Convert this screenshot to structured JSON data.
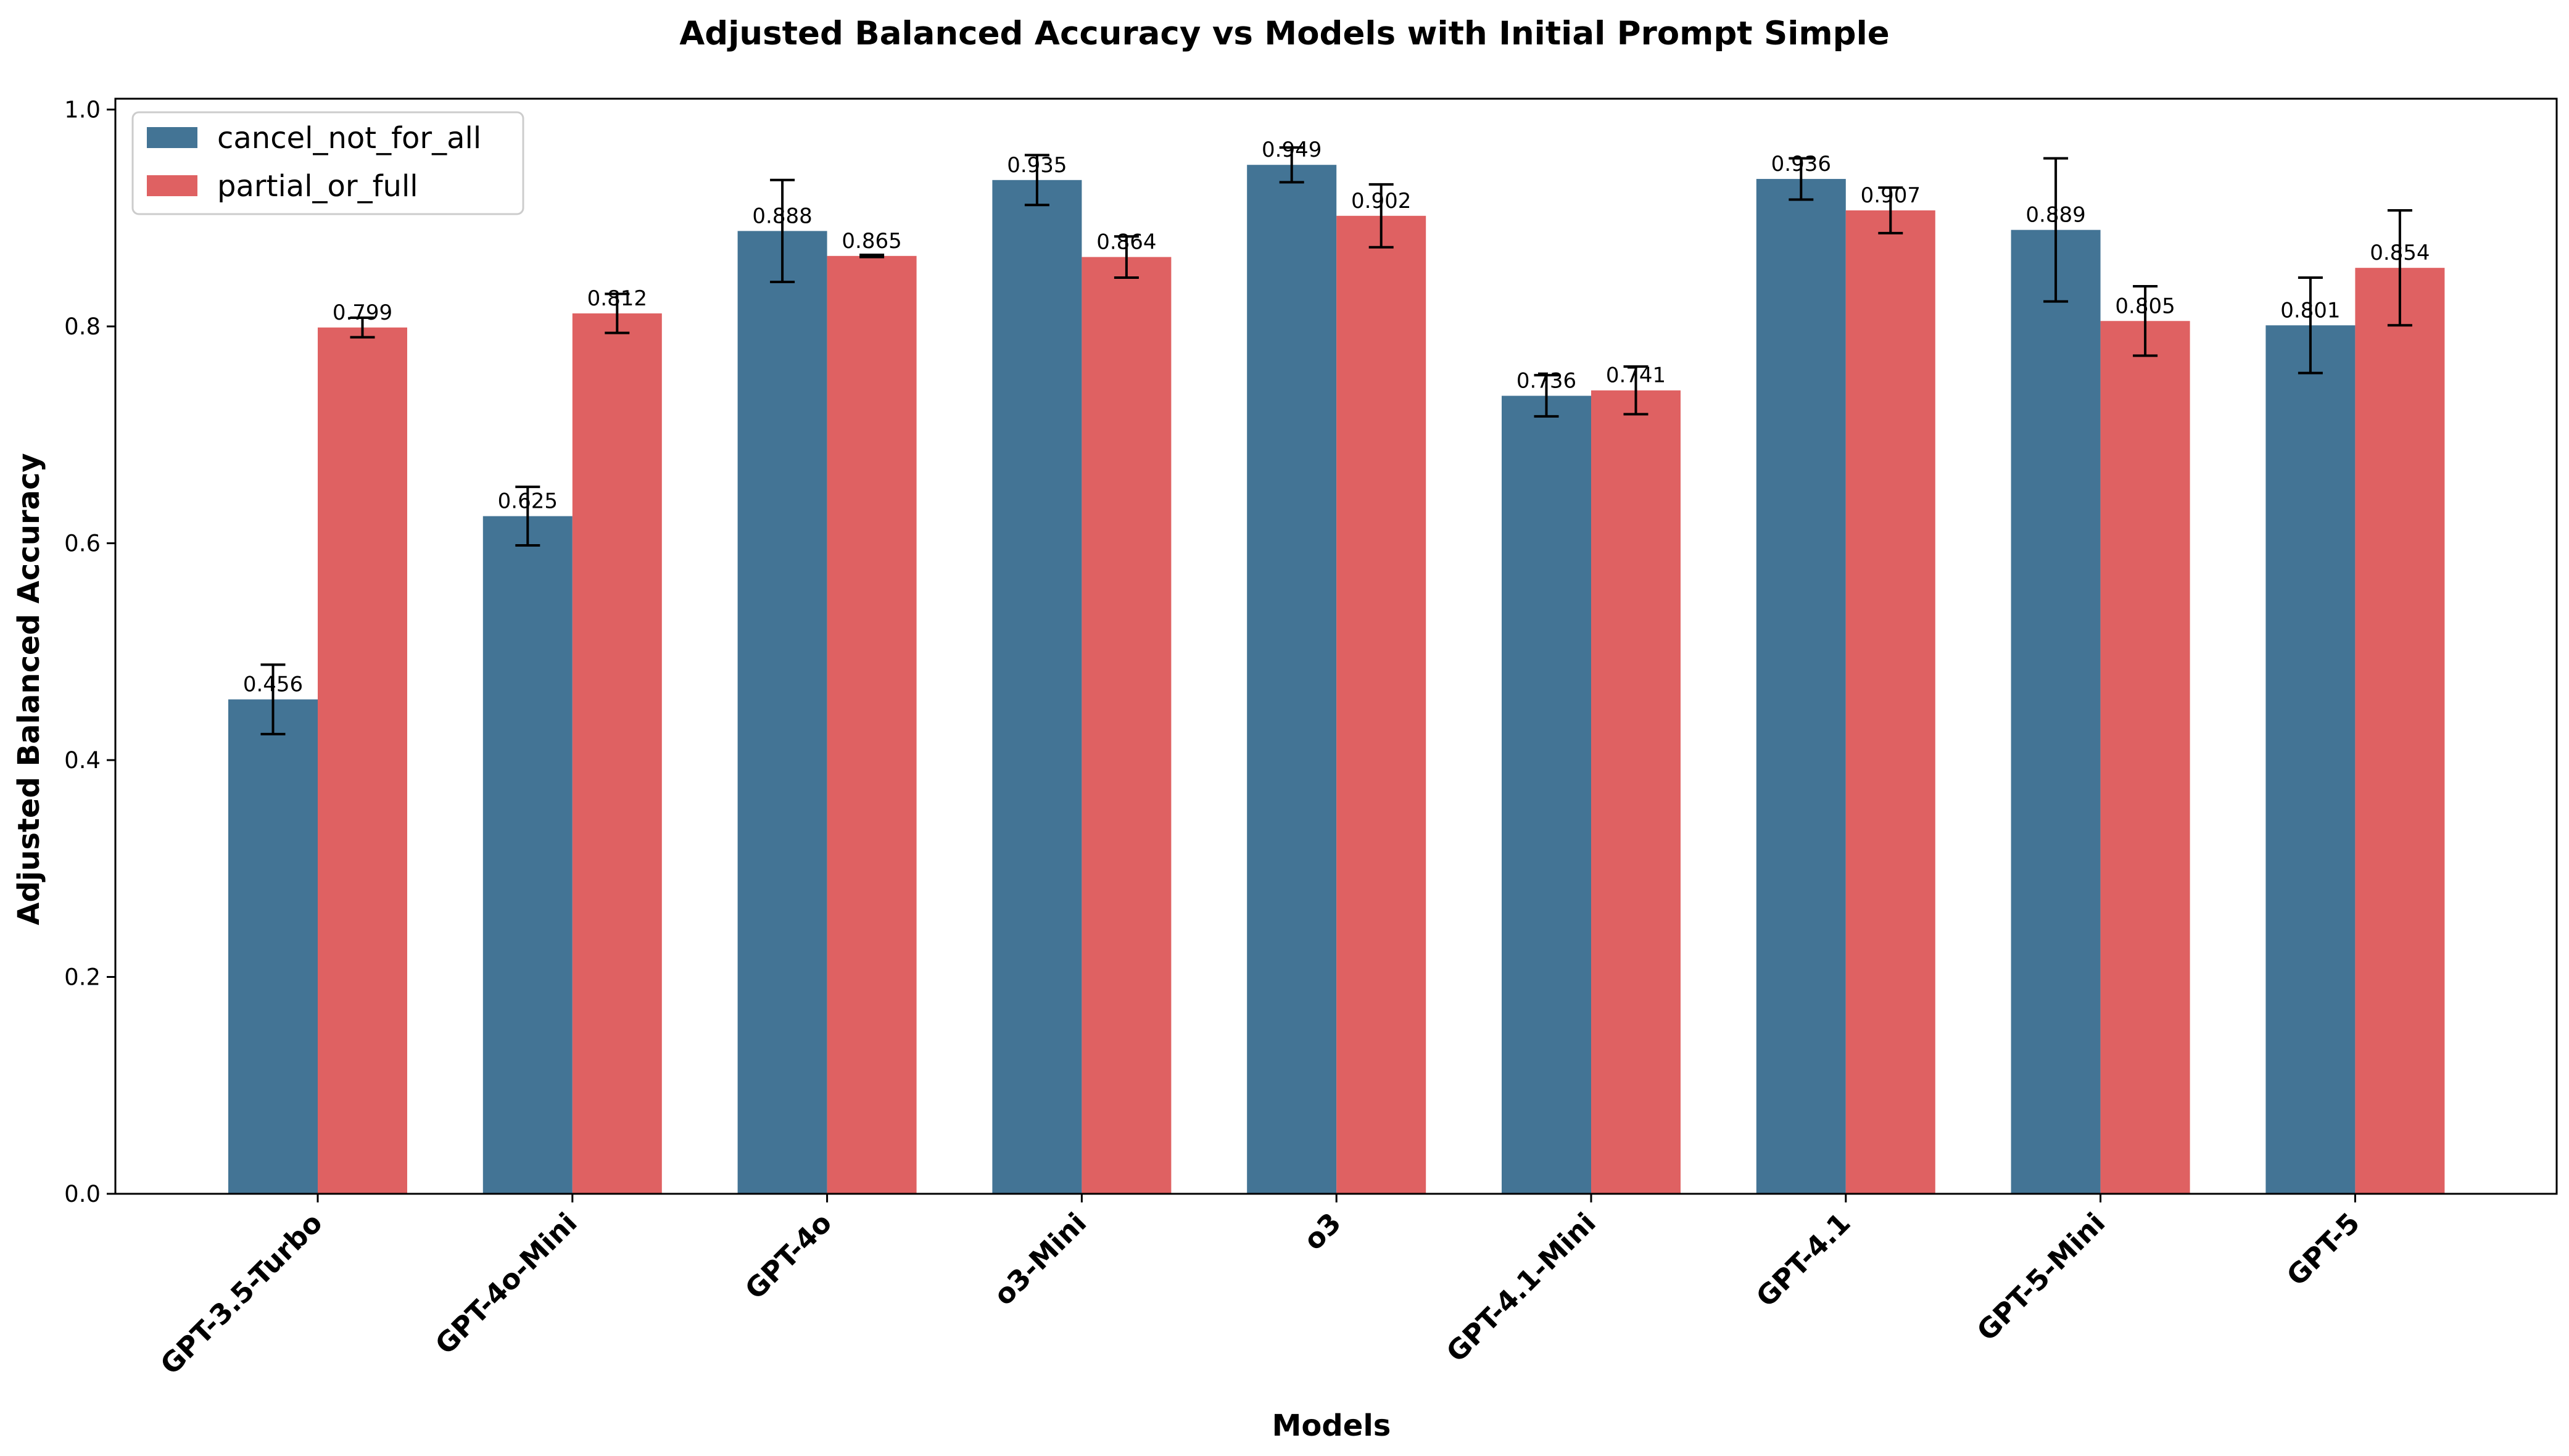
{
  "chart_data": {
    "type": "bar",
    "title": "Adjusted Balanced Accuracy vs Models with Initial Prompt Simple",
    "xlabel": "Models",
    "ylabel": "Adjusted Balanced Accuracy",
    "ylim": [
      0,
      1.01
    ],
    "yticks": [
      0.0,
      0.2,
      0.4,
      0.6,
      0.8,
      1.0
    ],
    "ytick_labels": [
      "0.0",
      "0.2",
      "0.4",
      "0.6",
      "0.8",
      "1.0"
    ],
    "categories": [
      "GPT-3.5-Turbo",
      "GPT-4o-Mini",
      "GPT-4o",
      "o3-Mini",
      "o3",
      "GPT-4.1-Mini",
      "GPT-4.1",
      "GPT-5-Mini",
      "GPT-5"
    ],
    "series": [
      {
        "name": "cancel_not_for_all",
        "color": "#437495",
        "values": [
          0.456,
          0.625,
          0.888,
          0.935,
          0.949,
          0.736,
          0.936,
          0.889,
          0.801
        ],
        "labels": [
          "0.456",
          "0.625",
          "0.888",
          "0.935",
          "0.949",
          "0.736",
          "0.936",
          "0.889",
          "0.801"
        ],
        "errors": [
          0.032,
          0.027,
          0.047,
          0.023,
          0.016,
          0.019,
          0.019,
          0.066,
          0.044
        ]
      },
      {
        "name": "partial_or_full",
        "color": "#DF6162",
        "values": [
          0.799,
          0.812,
          0.865,
          0.864,
          0.902,
          0.741,
          0.907,
          0.805,
          0.854
        ],
        "labels": [
          "0.799",
          "0.812",
          "0.865",
          "0.864",
          "0.902",
          "0.741",
          "0.907",
          "0.805",
          "0.854"
        ],
        "errors": [
          0.009,
          0.018,
          0.001,
          0.019,
          0.029,
          0.022,
          0.021,
          0.032,
          0.053
        ]
      }
    ],
    "legend_position": "upper-left",
    "grid": false
  }
}
